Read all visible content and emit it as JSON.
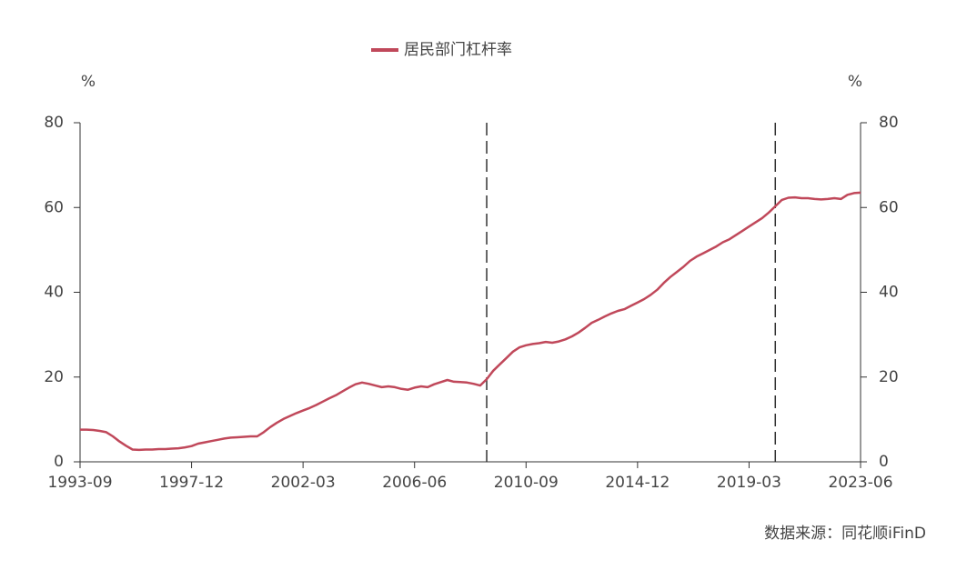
{
  "chart_data": {
    "type": "line",
    "ylabel": "%",
    "y2label": "%",
    "source": "数据来源：同花顺iFinD",
    "x": [
      "1993-09",
      "1993-12",
      "1994-03",
      "1994-06",
      "1994-09",
      "1994-12",
      "1995-03",
      "1995-06",
      "1995-09",
      "1995-12",
      "1996-03",
      "1996-06",
      "1996-09",
      "1996-12",
      "1997-03",
      "1997-06",
      "1997-09",
      "1997-12",
      "1998-03",
      "1998-06",
      "1998-09",
      "1998-12",
      "1999-03",
      "1999-06",
      "1999-09",
      "1999-12",
      "2000-03",
      "2000-06",
      "2000-09",
      "2000-12",
      "2001-03",
      "2001-06",
      "2001-09",
      "2001-12",
      "2002-03",
      "2002-06",
      "2002-09",
      "2002-12",
      "2003-03",
      "2003-06",
      "2003-09",
      "2003-12",
      "2004-03",
      "2004-06",
      "2004-09",
      "2004-12",
      "2005-03",
      "2005-06",
      "2005-09",
      "2005-12",
      "2006-03",
      "2006-06",
      "2006-09",
      "2006-12",
      "2007-03",
      "2007-06",
      "2007-09",
      "2007-12",
      "2008-03",
      "2008-06",
      "2008-09",
      "2008-12",
      "2009-03",
      "2009-06",
      "2009-09",
      "2009-12",
      "2010-03",
      "2010-06",
      "2010-09",
      "2010-12",
      "2011-03",
      "2011-06",
      "2011-09",
      "2011-12",
      "2012-03",
      "2012-06",
      "2012-09",
      "2012-12",
      "2013-03",
      "2013-06",
      "2013-09",
      "2013-12",
      "2014-03",
      "2014-06",
      "2014-09",
      "2014-12",
      "2015-03",
      "2015-06",
      "2015-09",
      "2015-12",
      "2016-03",
      "2016-06",
      "2016-09",
      "2016-12",
      "2017-03",
      "2017-06",
      "2017-09",
      "2017-12",
      "2018-03",
      "2018-06",
      "2018-09",
      "2018-12",
      "2019-03",
      "2019-06",
      "2019-09",
      "2019-12",
      "2020-03",
      "2020-06",
      "2020-09",
      "2020-12",
      "2021-03",
      "2021-06",
      "2021-09",
      "2021-12",
      "2022-03",
      "2022-06",
      "2022-09",
      "2022-12",
      "2023-03",
      "2023-06"
    ],
    "series": [
      {
        "name": "居民部门杠杆率",
        "color": "#c0485a",
        "values": [
          7.6,
          7.6,
          7.5,
          7.3,
          7.0,
          6.0,
          4.8,
          3.8,
          2.9,
          2.8,
          2.9,
          2.9,
          3.0,
          3.0,
          3.1,
          3.2,
          3.4,
          3.7,
          4.3,
          4.6,
          4.9,
          5.2,
          5.5,
          5.7,
          5.8,
          5.9,
          6.0,
          6.0,
          7.0,
          8.2,
          9.2,
          10.1,
          10.8,
          11.5,
          12.1,
          12.7,
          13.4,
          14.2,
          15.0,
          15.7,
          16.6,
          17.5,
          18.3,
          18.7,
          18.4,
          18.0,
          17.6,
          17.8,
          17.6,
          17.2,
          17.0,
          17.5,
          17.8,
          17.6,
          18.3,
          18.8,
          19.3,
          18.9,
          18.8,
          18.7,
          18.4,
          18.0,
          19.5,
          21.5,
          23.0,
          24.5,
          26.0,
          27.0,
          27.5,
          27.8,
          28.0,
          28.3,
          28.1,
          28.4,
          28.9,
          29.6,
          30.5,
          31.6,
          32.8,
          33.5,
          34.3,
          35.0,
          35.6,
          36.0,
          36.8,
          37.6,
          38.4,
          39.4,
          40.6,
          42.2,
          43.6,
          44.8,
          46.0,
          47.4,
          48.4,
          49.2,
          50.0,
          50.8,
          51.8,
          52.5,
          53.5,
          54.5,
          55.5,
          56.5,
          57.5,
          58.8,
          60.3,
          61.8,
          62.3,
          62.4,
          62.2,
          62.2,
          62.0,
          61.9,
          62.0,
          62.2,
          62.0,
          63.0,
          63.4,
          63.5
        ]
      }
    ],
    "xticks": [
      "1993-09",
      "1997-12",
      "2002-03",
      "2006-06",
      "2010-09",
      "2014-12",
      "2019-03",
      "2023-06"
    ],
    "vlines": [
      "2009-03",
      "2020-03"
    ],
    "ylim": [
      0,
      80
    ],
    "yticks": [
      0,
      20,
      40,
      60,
      80
    ],
    "y2lim": [
      0,
      80
    ],
    "y2ticks": [
      0,
      20,
      40,
      60,
      80
    ],
    "legend": "top"
  }
}
